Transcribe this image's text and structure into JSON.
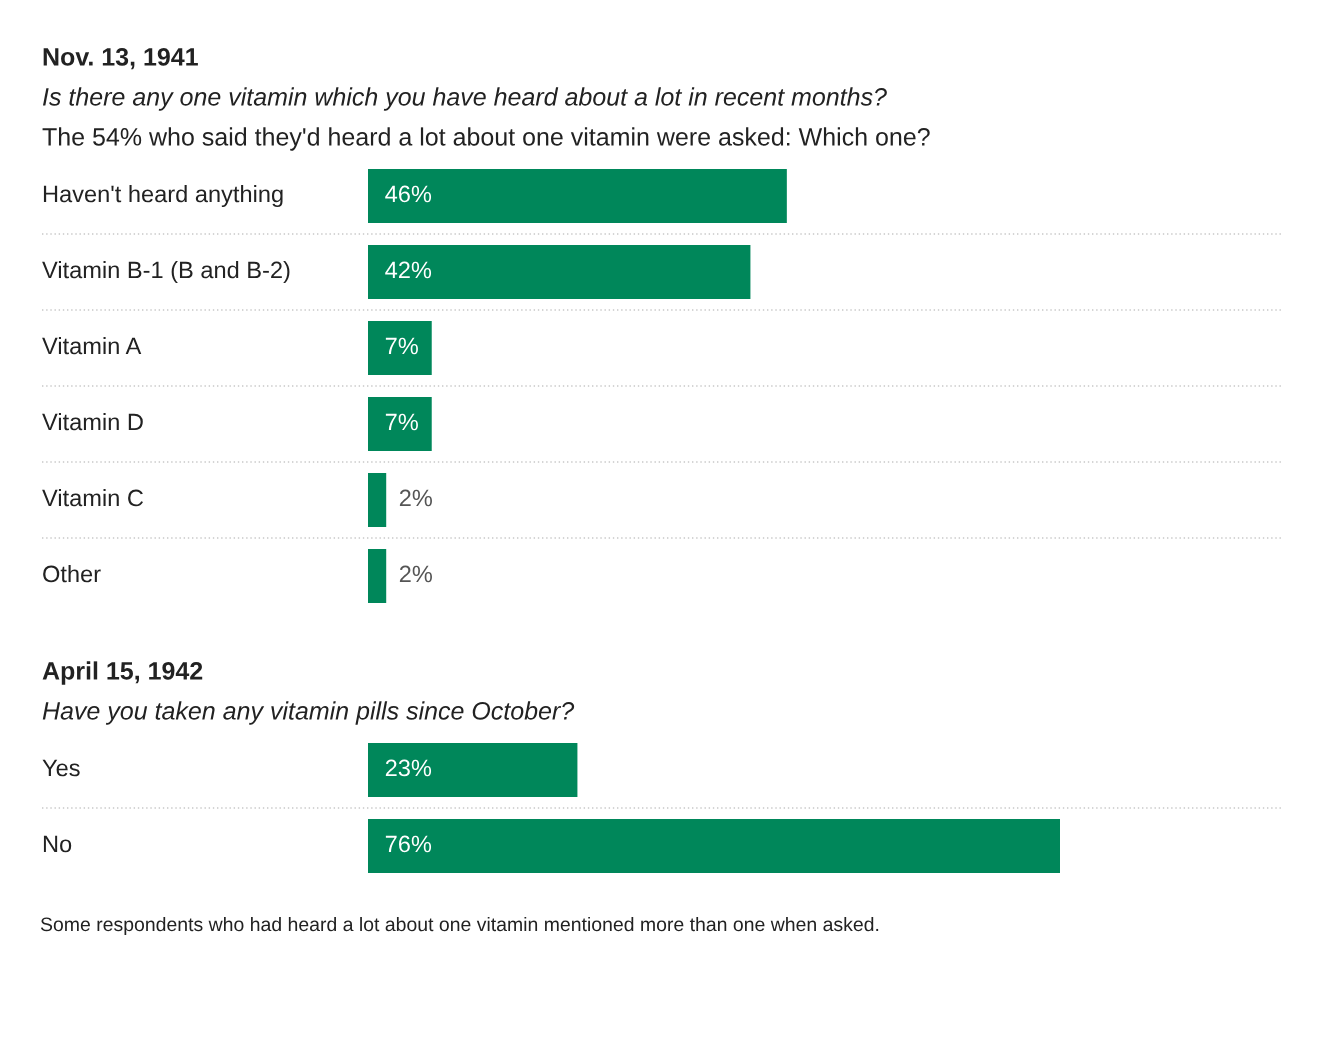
{
  "chart_data": [
    {
      "type": "bar",
      "orientation": "horizontal",
      "title": "Nov. 13, 1941",
      "subtitle": "Is there any one vitamin which you have heard about a lot in recent months?\nThe 54% who said they'd heard a lot about one vitamin were asked: Which one?",
      "categories": [
        "Haven't heard anything",
        "Vitamin B-1 (B and B-2)",
        "Vitamin A",
        "Vitamin D",
        "Vitamin C",
        "Other"
      ],
      "values": [
        46,
        42,
        7,
        7,
        2,
        2
      ],
      "color": "#00875a",
      "value_labels": [
        "46%",
        "42%",
        "7%",
        "7%",
        "2%",
        "2%"
      ]
    },
    {
      "type": "bar",
      "orientation": "horizontal",
      "title": "April 15, 1942",
      "subtitle": "Have you taken any vitamin pills since October?",
      "categories": [
        "Yes",
        "No"
      ],
      "values": [
        23,
        76
      ],
      "color": "#00875a",
      "value_labels": [
        "23%",
        "76%"
      ],
      "annotations": [
        "Some respondents who had heard a lot about one vitamin mentioned more than one when asked."
      ]
    }
  ]
}
